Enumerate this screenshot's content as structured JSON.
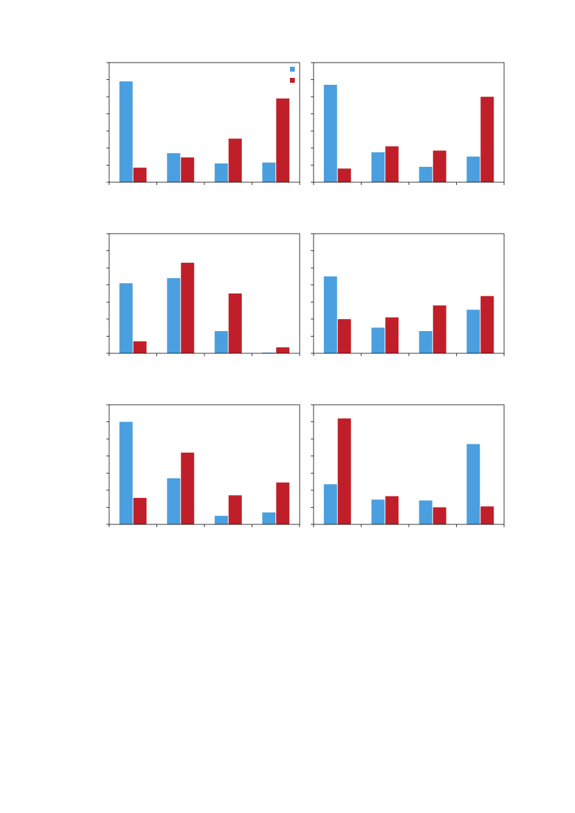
{
  "colors": {
    "series_a": "#4a9fdf",
    "series_b": "#c01f29",
    "axes": "#000000",
    "background": "#ffffff"
  },
  "chart_data": [
    {
      "type": "bar",
      "categories": [
        "",
        "",
        "",
        ""
      ],
      "ylim": [
        0,
        7
      ],
      "yticks": [
        0,
        1,
        2,
        3,
        4,
        5,
        6,
        7
      ],
      "grid": false,
      "legend": "top-right",
      "series": [
        {
          "color_key": "series_a",
          "values": [
            5.9,
            1.7,
            1.1,
            1.15
          ]
        },
        {
          "color_key": "series_b",
          "values": [
            0.85,
            1.45,
            2.55,
            4.9
          ]
        }
      ]
    },
    {
      "type": "bar",
      "categories": [
        "",
        "",
        "",
        ""
      ],
      "ylim": [
        0,
        7
      ],
      "yticks": [
        0,
        1,
        2,
        3,
        4,
        5,
        6,
        7
      ],
      "grid": false,
      "legend": "none",
      "series": [
        {
          "color_key": "series_a",
          "values": [
            5.7,
            1.75,
            0.9,
            1.5
          ]
        },
        {
          "color_key": "series_b",
          "values": [
            0.8,
            2.1,
            1.85,
            5.0
          ]
        }
      ]
    },
    {
      "type": "bar",
      "categories": [
        "",
        "",
        "",
        ""
      ],
      "ylim": [
        0,
        7
      ],
      "yticks": [
        0,
        1,
        2,
        3,
        4,
        5,
        6,
        7
      ],
      "grid": false,
      "legend": "none",
      "series": [
        {
          "color_key": "series_a",
          "values": [
            4.1,
            4.4,
            1.3,
            0.04
          ]
        },
        {
          "color_key": "series_b",
          "values": [
            0.7,
            5.3,
            3.5,
            0.35
          ]
        }
      ]
    },
    {
      "type": "bar",
      "categories": [
        "",
        "",
        "",
        ""
      ],
      "ylim": [
        0,
        7
      ],
      "yticks": [
        0,
        1,
        2,
        3,
        4,
        5,
        6,
        7
      ],
      "grid": false,
      "legend": "none",
      "series": [
        {
          "color_key": "series_a",
          "values": [
            4.5,
            1.5,
            1.3,
            2.55
          ]
        },
        {
          "color_key": "series_b",
          "values": [
            2.0,
            2.1,
            2.8,
            3.35
          ]
        }
      ]
    },
    {
      "type": "bar",
      "categories": [
        "",
        "",
        "",
        ""
      ],
      "ylim": [
        0,
        7
      ],
      "yticks": [
        0,
        1,
        2,
        3,
        4,
        5,
        6,
        7
      ],
      "grid": false,
      "legend": "none",
      "series": [
        {
          "color_key": "series_a",
          "values": [
            6.0,
            2.7,
            0.5,
            0.7
          ]
        },
        {
          "color_key": "series_b",
          "values": [
            1.55,
            4.2,
            1.7,
            2.45
          ]
        }
      ]
    },
    {
      "type": "bar",
      "categories": [
        "",
        "",
        "",
        ""
      ],
      "ylim": [
        0,
        7
      ],
      "yticks": [
        0,
        1,
        2,
        3,
        4,
        5,
        6,
        7
      ],
      "grid": false,
      "legend": "none",
      "series": [
        {
          "color_key": "series_a",
          "values": [
            2.35,
            1.45,
            1.4,
            4.7
          ]
        },
        {
          "color_key": "series_b",
          "values": [
            6.2,
            1.65,
            1.0,
            1.05
          ]
        }
      ]
    }
  ]
}
